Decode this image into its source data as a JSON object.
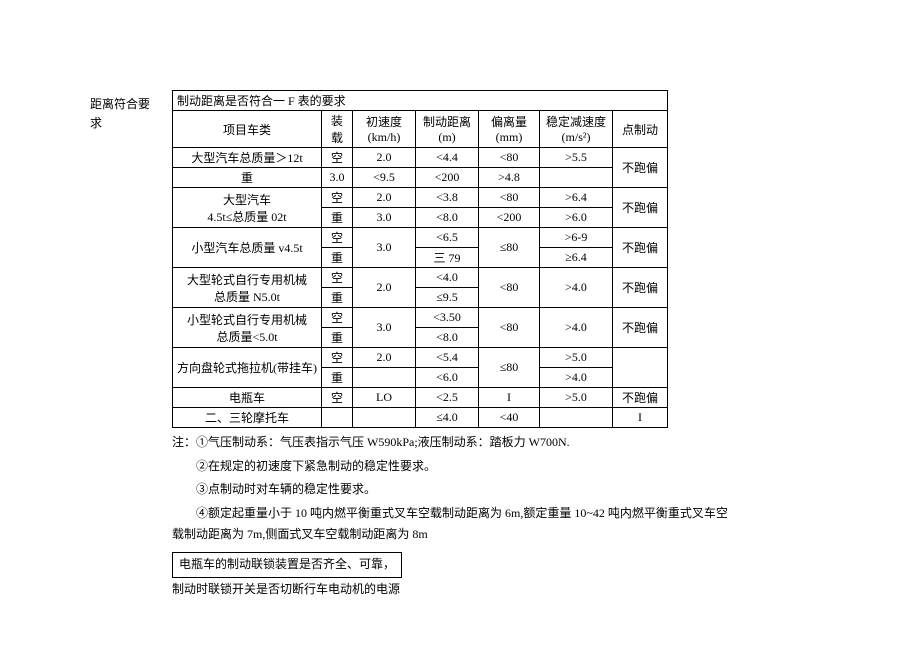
{
  "left_label": "距离符合要求",
  "table": {
    "title": "制动距离是否符合一 F 表的要求",
    "headers": {
      "col1": "项目车类",
      "col2": "装载",
      "col3": "初速度(km/h)",
      "col4": "制动距离(m)",
      "col5": "偏离量(mm)",
      "col6": "稳定减速度(m/s²)",
      "col7": "点制动"
    },
    "rows": [
      {
        "cat": "大型汽车总质量＞12t",
        "load": "空",
        "speed": "2.0",
        "dist": "<4.4",
        "dev": "<80",
        "dec": ">5.5",
        "pt": "不跑偏",
        "pt_span": 2
      },
      {
        "cat": "",
        "load": "重",
        "speed": "3.0",
        "dist": "<9.5",
        "dev": "<200",
        "dec": ">4.8"
      },
      {
        "cat": "大型汽车\n4.5t≤总质量 02t",
        "load": "空",
        "speed": "2.0",
        "dist": "<3.8",
        "dev": "<80",
        "dec": ">6.4",
        "pt": "不跑偏",
        "pt_span": 2,
        "cat_span": 2
      },
      {
        "cat": "",
        "load": "重",
        "speed": "3.0",
        "dist": "<8.0",
        "dev": "<200",
        "dec": ">6.0"
      },
      {
        "cat": "小型汽车总质量 v4.5t",
        "load": "空",
        "speed": "3.0",
        "dist": "<6.5",
        "dev": "≤80",
        "dec": ">6-9",
        "pt": "不跑偏",
        "pt_span": 2,
        "cat_span": 2,
        "speed_span": 2,
        "dev_span": 2
      },
      {
        "cat": "",
        "load": "重",
        "dist": "三 79",
        "dec": "≥6.4"
      },
      {
        "cat": "大型轮式自行专用机械\n总质量 N5.0t",
        "load": "空",
        "speed": "2.0",
        "dist": "<4.0",
        "dev": "<80",
        "dec": ">4.0",
        "pt": "不跑偏",
        "pt_span": 2,
        "cat_span": 2,
        "speed_span": 2,
        "dev_span": 2,
        "dec_span": 2
      },
      {
        "cat": "",
        "load": "重",
        "dist": "≤9.5"
      },
      {
        "cat": "小型轮式自行专用机械\n总质量<5.0t",
        "load": "空",
        "speed": "3.0",
        "dist": "<3.50",
        "dev": "<80",
        "dec": ">4.0",
        "pt": "不跑偏",
        "pt_span": 2,
        "cat_span": 2,
        "speed_span": 2,
        "dev_span": 2,
        "dec_span": 2
      },
      {
        "cat": "",
        "load": "重",
        "dist": "<8.0"
      },
      {
        "cat": "方向盘轮式拖拉机(带挂车)",
        "load": "空",
        "speed": "2.0",
        "dist": "<5.4",
        "dev": "≤80",
        "dec": ">5.0",
        "pt": "",
        "pt_span": 2,
        "cat_span": 2,
        "dev_span": 2
      },
      {
        "cat": "",
        "load": "重",
        "speed": "",
        "dist": "<6.0",
        "dec": ">4.0"
      },
      {
        "cat": "电瓶车",
        "load": "空",
        "speed": "LO",
        "dist": "<2.5",
        "dev": "I",
        "dec": ">5.0",
        "pt": "不跑偏"
      },
      {
        "cat": "二、三轮摩托车",
        "load": "",
        "speed": "",
        "dist": "≤4.0",
        "dev": "<40",
        "dec": "",
        "pt": "I"
      }
    ],
    "col_widths": {
      "c1": 140,
      "c2": 22,
      "c3": 54,
      "c4": 54,
      "c5": 52,
      "c6": 64,
      "c7": 46
    }
  },
  "notes": {
    "n1": "注：①气压制动系：气压表指示气压 W590kPa;液压制动系：踏板力 W700N.",
    "n2": "②在规定的初速度下紧急制动的稳定性要求。",
    "n3": "③点制动时对车辆的稳定性要求。",
    "n4": "④额定起重量小于 10 吨内燃平衡重式叉车空载制动距离为 6m,额定重量 10~42 吨内燃平衡重式叉车空载制动距离为 7m,侧面式叉车空载制动距离为 8m"
  },
  "box_text": "电瓶车的制动联锁装置是否齐全、可靠，",
  "after_box": "制动时联锁开关是否切断行车电动机的电源"
}
